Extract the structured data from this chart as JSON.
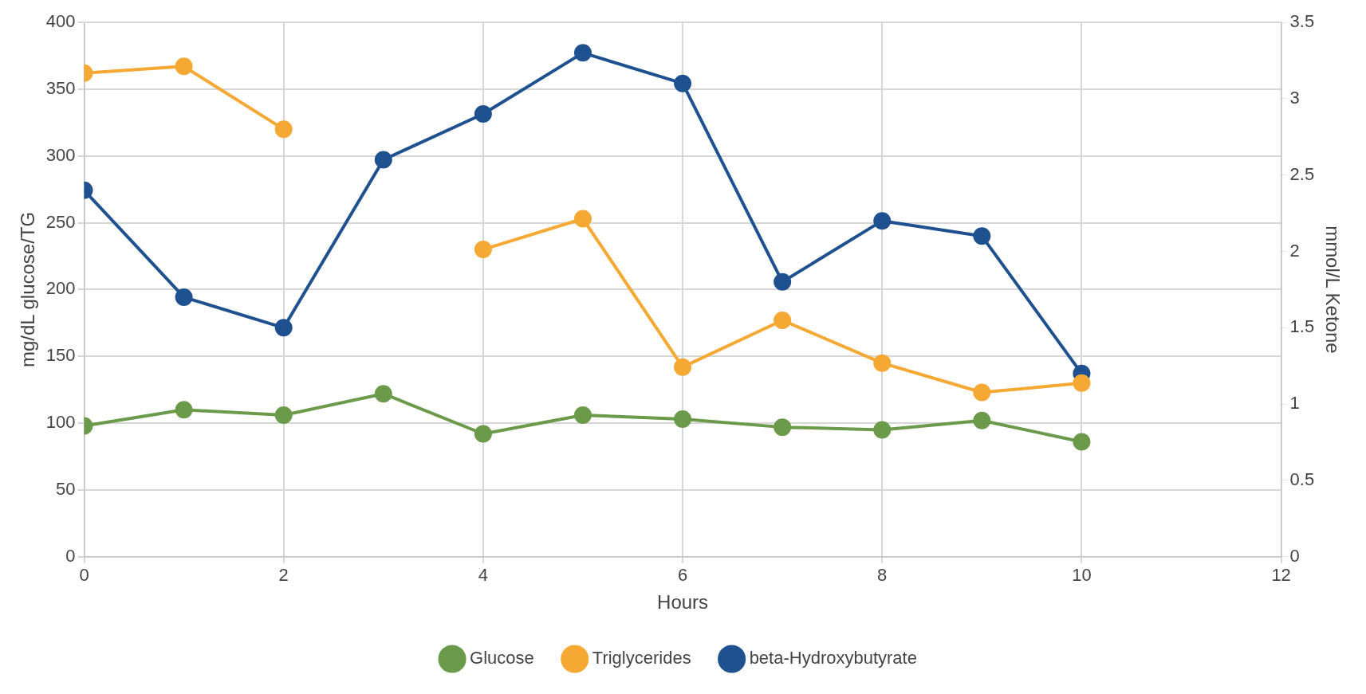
{
  "chart_data": {
    "type": "line",
    "xlabel": "Hours",
    "ylabel": "mg/dL glucose/TG",
    "y2label": "mmol/L Ketone",
    "x": [
      0,
      1,
      2,
      3,
      4,
      5,
      6,
      7,
      8,
      9,
      10
    ],
    "xlim": [
      0,
      12
    ],
    "xticks": [
      0,
      2,
      4,
      6,
      8,
      10,
      12
    ],
    "ylim": [
      0,
      400
    ],
    "yticks": [
      0,
      50,
      100,
      150,
      200,
      250,
      300,
      350,
      400
    ],
    "y2lim": [
      0,
      3.5
    ],
    "y2ticks": [
      0,
      0.5,
      1,
      1.5,
      2,
      2.5,
      3,
      3.5
    ],
    "grid": true,
    "legend": "bottom",
    "marker": "circle",
    "line_style": "solid",
    "series": [
      {
        "name": "Glucose",
        "color": "#6a9a4a",
        "values": [
          98,
          110,
          106,
          122,
          92,
          106,
          103,
          97,
          95,
          102,
          86
        ]
      },
      {
        "name": "Triglycerides",
        "color": "#f5a833",
        "values": [
          362,
          367,
          320,
          null,
          230,
          253,
          142,
          177,
          145,
          123,
          130
        ]
      },
      {
        "name": "beta-Hydroxybutyrate",
        "color": "#1f5190",
        "axis": "y2",
        "values": [
          2.4,
          1.7,
          1.5,
          2.6,
          2.9,
          3.3,
          3.1,
          1.8,
          2.2,
          2.1,
          1.2
        ]
      }
    ]
  }
}
